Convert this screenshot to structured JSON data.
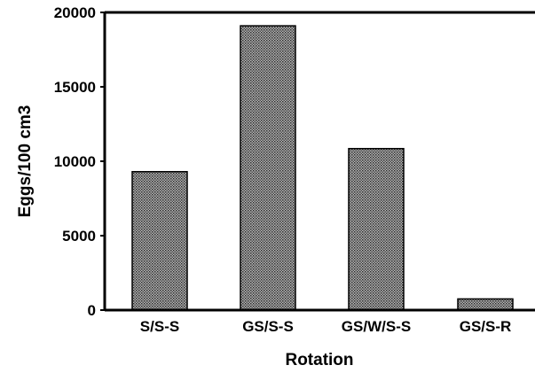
{
  "chart_data": {
    "type": "bar",
    "title": "",
    "xlabel": "Rotation",
    "ylabel": "Eggs/100 cm3",
    "categories": [
      "S/S-S",
      "GS/S-S",
      "GS/W/S-S",
      "GS/S-R"
    ],
    "values": [
      9300,
      19100,
      10850,
      750
    ],
    "ylim": [
      0,
      20000
    ],
    "yticks": [
      0,
      5000,
      10000,
      15000,
      20000
    ],
    "ytick_labels": [
      "0",
      "5000",
      "10000",
      "15000",
      "20000"
    ],
    "grid": false,
    "legend": "none",
    "bar_color": "#8a8a8a"
  }
}
